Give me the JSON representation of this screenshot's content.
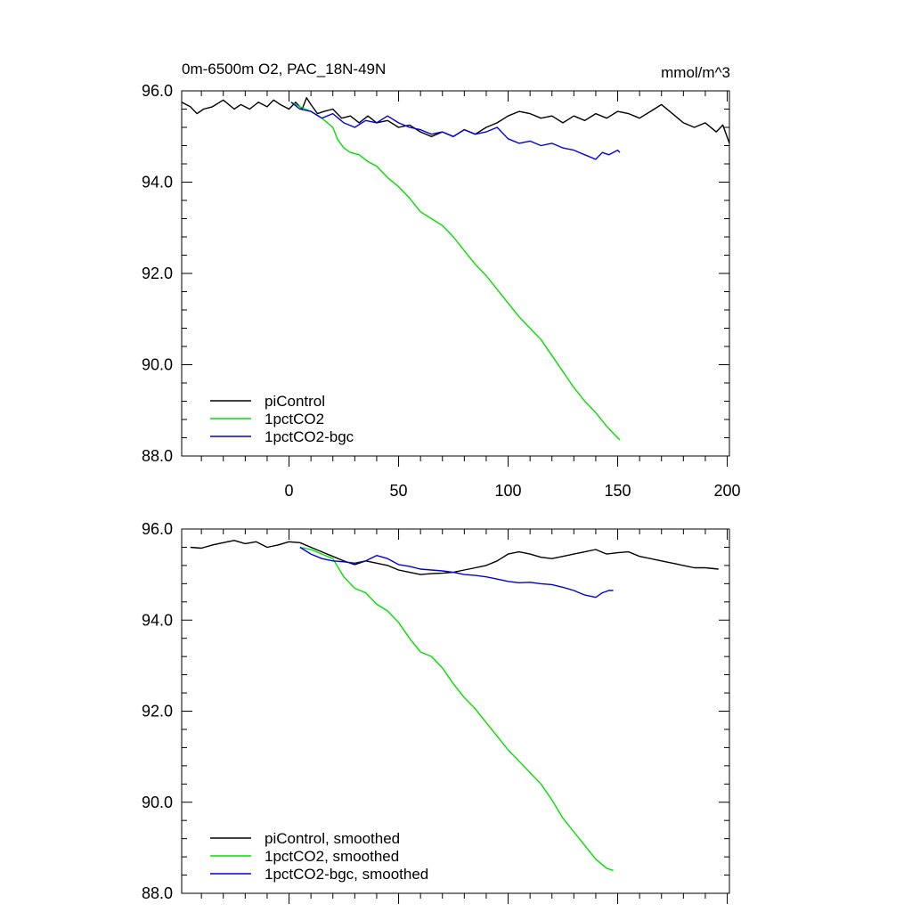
{
  "figure": {
    "title": "0m-6500m O2, PAC_18N-49N",
    "units": "mmol/m^3"
  },
  "colors": {
    "piControl": "#000000",
    "co2": "#00e000",
    "bgc": "#0000e0"
  },
  "chart_data": [
    {
      "type": "line",
      "panel": "top",
      "title": "0m-6500m O2, PAC_18N-49N",
      "units_label": "mmol/m^3",
      "xlabel": "",
      "ylabel": "",
      "xlim": [
        -49,
        201
      ],
      "ylim": [
        88,
        96
      ],
      "x_ticks": [
        0,
        50,
        100,
        150,
        200
      ],
      "x_tick_labels": [
        "0",
        "50",
        "100",
        "150",
        "200"
      ],
      "y_ticks": [
        88,
        90,
        92,
        94,
        96
      ],
      "y_tick_labels": [
        "88.0",
        "90.0",
        "92.0",
        "94.0",
        "96.0"
      ],
      "legend_position": "bottom-left",
      "series": [
        {
          "name": "piControl",
          "color": "#000000",
          "x": [
            -49,
            -45,
            -42,
            -39,
            -35,
            -30,
            -25,
            -22,
            -18,
            -14,
            -10,
            -7,
            -4,
            0,
            3,
            6,
            8,
            10,
            13,
            16,
            20,
            24,
            28,
            32,
            36,
            40,
            45,
            50,
            55,
            60,
            65,
            70,
            75,
            80,
            85,
            90,
            95,
            100,
            105,
            110,
            115,
            120,
            125,
            130,
            135,
            140,
            145,
            150,
            155,
            160,
            165,
            170,
            175,
            180,
            185,
            190,
            195,
            198,
            201
          ],
          "y": [
            95.75,
            95.65,
            95.5,
            95.6,
            95.65,
            95.8,
            95.6,
            95.7,
            95.6,
            95.75,
            95.65,
            95.8,
            95.7,
            95.6,
            95.75,
            95.6,
            95.85,
            95.7,
            95.5,
            95.55,
            95.6,
            95.4,
            95.45,
            95.3,
            95.45,
            95.3,
            95.35,
            95.2,
            95.25,
            95.1,
            95.0,
            95.1,
            95.0,
            95.15,
            95.05,
            95.2,
            95.3,
            95.45,
            95.55,
            95.5,
            95.4,
            95.45,
            95.3,
            95.45,
            95.35,
            95.5,
            95.4,
            95.55,
            95.5,
            95.4,
            95.55,
            95.7,
            95.5,
            95.3,
            95.2,
            95.3,
            95.1,
            95.25,
            94.85
          ]
        },
        {
          "name": "1pctCO2",
          "color": "#00e000",
          "x": [
            1,
            5,
            10,
            15,
            20,
            22,
            25,
            28,
            32,
            36,
            40,
            45,
            50,
            55,
            60,
            65,
            70,
            75,
            80,
            85,
            90,
            95,
            100,
            105,
            110,
            115,
            120,
            125,
            130,
            135,
            140,
            145,
            150,
            151
          ],
          "y": [
            95.75,
            95.65,
            95.55,
            95.4,
            95.2,
            94.95,
            94.75,
            94.65,
            94.6,
            94.45,
            94.35,
            94.1,
            93.9,
            93.65,
            93.35,
            93.2,
            93.05,
            92.8,
            92.5,
            92.2,
            91.95,
            91.65,
            91.35,
            91.05,
            90.8,
            90.55,
            90.2,
            89.85,
            89.5,
            89.2,
            88.95,
            88.65,
            88.4,
            88.35
          ]
        },
        {
          "name": "1pctCO2-bgc",
          "color": "#0000e0",
          "x": [
            1,
            5,
            10,
            15,
            20,
            25,
            30,
            35,
            40,
            45,
            50,
            55,
            60,
            65,
            70,
            75,
            80,
            85,
            90,
            95,
            100,
            105,
            110,
            115,
            120,
            125,
            130,
            135,
            140,
            143,
            146,
            150,
            151
          ],
          "y": [
            95.75,
            95.6,
            95.55,
            95.4,
            95.5,
            95.3,
            95.2,
            95.35,
            95.3,
            95.45,
            95.3,
            95.2,
            95.15,
            95.05,
            95.1,
            95.0,
            95.15,
            95.05,
            95.1,
            95.2,
            94.95,
            94.85,
            94.9,
            94.8,
            94.85,
            94.75,
            94.7,
            94.6,
            94.5,
            94.65,
            94.6,
            94.7,
            94.65
          ]
        }
      ],
      "legend": [
        "piControl",
        "1pctCO2",
        "1pctCO2-bgc"
      ]
    },
    {
      "type": "line",
      "panel": "bottom",
      "xlabel": "",
      "ylabel": "",
      "xlim": [
        -49,
        201
      ],
      "ylim": [
        88,
        96
      ],
      "x_ticks": [
        0,
        50,
        100,
        150,
        200
      ],
      "y_ticks": [
        88,
        90,
        92,
        94,
        96
      ],
      "y_tick_labels": [
        "88.0",
        "90.0",
        "92.0",
        "94.0",
        "96.0"
      ],
      "legend_position": "bottom-left",
      "series": [
        {
          "name": "piControl, smoothed",
          "color": "#000000",
          "x": [
            -45,
            -40,
            -35,
            -30,
            -25,
            -20,
            -15,
            -10,
            -5,
            0,
            5,
            10,
            15,
            20,
            25,
            30,
            35,
            40,
            45,
            50,
            55,
            60,
            65,
            70,
            75,
            80,
            85,
            90,
            95,
            100,
            105,
            110,
            115,
            120,
            125,
            130,
            135,
            140,
            145,
            150,
            155,
            160,
            165,
            170,
            175,
            180,
            185,
            190,
            196
          ],
          "y": [
            95.6,
            95.58,
            95.65,
            95.7,
            95.75,
            95.68,
            95.72,
            95.6,
            95.65,
            95.72,
            95.7,
            95.6,
            95.5,
            95.4,
            95.3,
            95.22,
            95.3,
            95.25,
            95.2,
            95.1,
            95.05,
            95.0,
            95.02,
            95.03,
            95.05,
            95.1,
            95.15,
            95.2,
            95.3,
            95.45,
            95.5,
            95.45,
            95.38,
            95.35,
            95.4,
            95.45,
            95.5,
            95.55,
            95.45,
            95.48,
            95.5,
            95.4,
            95.35,
            95.3,
            95.25,
            95.2,
            95.15,
            95.15,
            95.12
          ]
        },
        {
          "name": "1pctCO2, smoothed",
          "color": "#00e000",
          "x": [
            5,
            10,
            15,
            20,
            25,
            30,
            35,
            40,
            45,
            50,
            55,
            60,
            65,
            70,
            75,
            80,
            85,
            90,
            95,
            100,
            105,
            110,
            115,
            120,
            125,
            130,
            135,
            140,
            145,
            148
          ],
          "y": [
            95.6,
            95.55,
            95.45,
            95.35,
            94.95,
            94.7,
            94.6,
            94.35,
            94.2,
            93.95,
            93.6,
            93.3,
            93.2,
            92.95,
            92.6,
            92.3,
            92.05,
            91.75,
            91.45,
            91.15,
            90.9,
            90.65,
            90.4,
            90.05,
            89.65,
            89.35,
            89.05,
            88.75,
            88.55,
            88.5
          ]
        },
        {
          "name": "1pctCO2-bgc, smoothed",
          "color": "#0000e0",
          "x": [
            5,
            10,
            15,
            20,
            25,
            30,
            35,
            40,
            45,
            50,
            55,
            60,
            65,
            70,
            75,
            80,
            85,
            90,
            95,
            100,
            105,
            110,
            115,
            120,
            125,
            130,
            135,
            140,
            143,
            146,
            148
          ],
          "y": [
            95.6,
            95.45,
            95.35,
            95.3,
            95.28,
            95.25,
            95.3,
            95.42,
            95.35,
            95.22,
            95.18,
            95.12,
            95.1,
            95.08,
            95.05,
            95.0,
            94.98,
            94.95,
            94.9,
            94.85,
            94.82,
            94.83,
            94.8,
            94.78,
            94.72,
            94.65,
            94.55,
            94.5,
            94.6,
            94.65,
            94.65
          ]
        }
      ],
      "legend": [
        "piControl, smoothed",
        "1pctCO2, smoothed",
        "1pctCO2-bgc, smoothed"
      ]
    }
  ]
}
